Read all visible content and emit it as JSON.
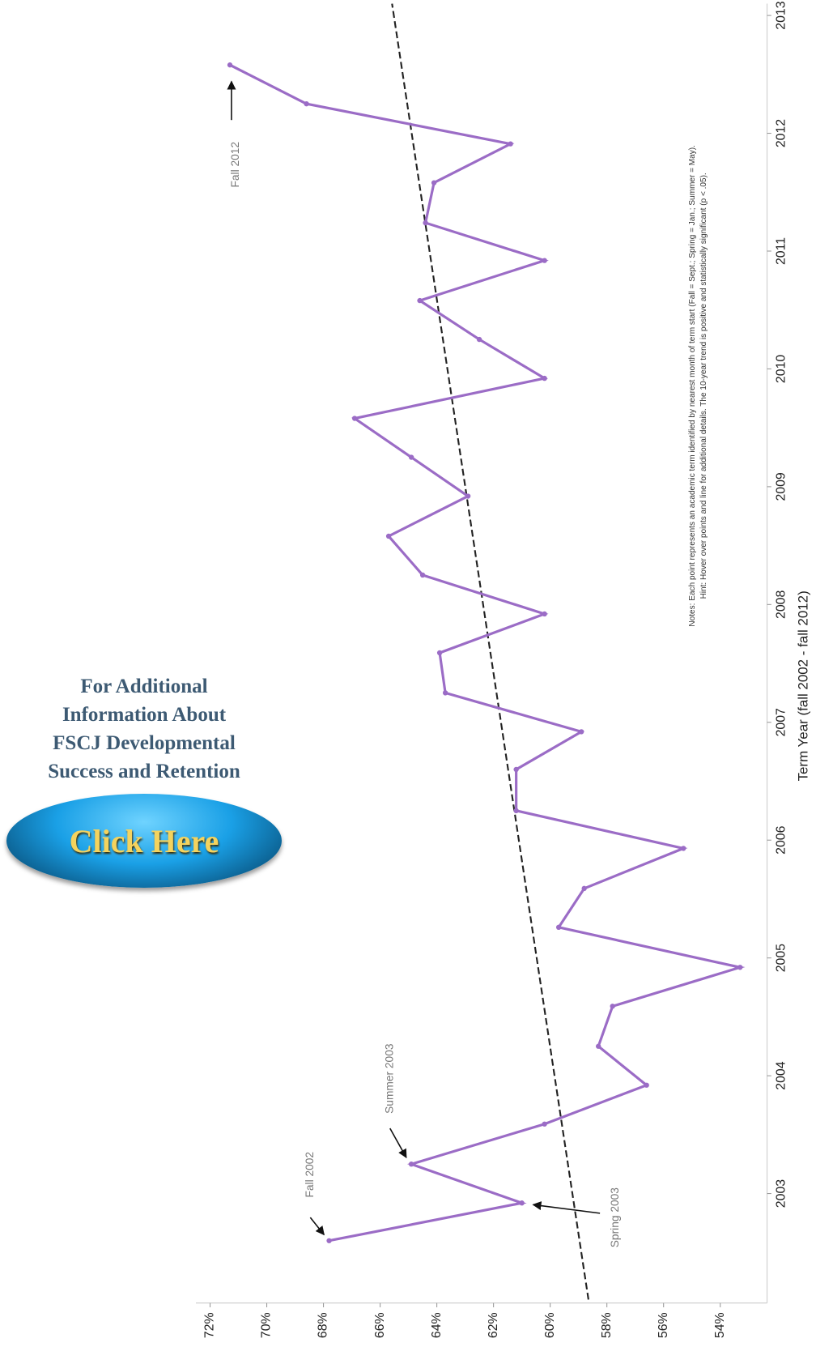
{
  "chart_data": {
    "type": "line",
    "x": [
      2002.6,
      2002.92,
      2003.25,
      2003.59,
      2003.92,
      2004.25,
      2004.59,
      2004.92,
      2005.26,
      2005.59,
      2005.93,
      2006.25,
      2006.6,
      2006.92,
      2007.25,
      2007.59,
      2007.92,
      2008.25,
      2008.58,
      2008.92,
      2009.25,
      2009.58,
      2009.92,
      2010.25,
      2010.58,
      2010.92,
      2011.24,
      2011.58,
      2011.91,
      2012.25,
      2012.58
    ],
    "values": [
      67.8,
      61.0,
      64.9,
      60.2,
      56.6,
      58.3,
      57.8,
      53.3,
      59.7,
      58.8,
      55.3,
      61.2,
      61.2,
      58.9,
      63.7,
      63.9,
      60.2,
      64.5,
      65.7,
      62.9,
      64.9,
      66.9,
      60.2,
      62.5,
      64.6,
      60.2,
      64.4,
      64.1,
      61.4,
      68.6,
      71.3
    ],
    "color": "#9b6cc6",
    "trend_line": {
      "x": [
        2002.1,
        2013.1
      ],
      "values": [
        58.65,
        65.58
      ],
      "color": "#222222"
    },
    "xlim": [
      2002.1,
      2013.1
    ],
    "xticks": [
      2003,
      2004,
      2005,
      2006,
      2007,
      2008,
      2009,
      2010,
      2011,
      2012,
      2013
    ],
    "ylim": [
      52.5,
      72.5
    ],
    "yticks": [
      {
        "value": 72,
        "label": "72%"
      },
      {
        "value": 70,
        "label": "70%"
      },
      {
        "value": 68,
        "label": "68%"
      },
      {
        "value": 66,
        "label": "66%"
      },
      {
        "value": 64,
        "label": "64%"
      },
      {
        "value": 62,
        "label": "62%"
      },
      {
        "value": 60,
        "label": "60%"
      },
      {
        "value": 58,
        "label": "58%"
      },
      {
        "value": 56,
        "label": "56%"
      },
      {
        "value": 54,
        "label": "54%"
      }
    ],
    "x_label": "Term Year (fall 2002 - fall 2012)",
    "annotations": [
      "Fall 2012",
      "Fall 2002",
      "Summer 2003",
      "Spring 2003"
    ],
    "notes": [
      "Notes: Each point represents an academic term identified by nearest month of term start (Fall = Sept.; Spring = Jan.; Summer = May).",
      "Hint: Hover over points and line for additional details.  The 10-year trend is positive and statistically significant (p < .05)."
    ]
  },
  "sidebar": {
    "lines": [
      "For Additional",
      "Information About",
      "FSCJ Developmental",
      "Success and Retention"
    ],
    "button": "Click Here"
  }
}
